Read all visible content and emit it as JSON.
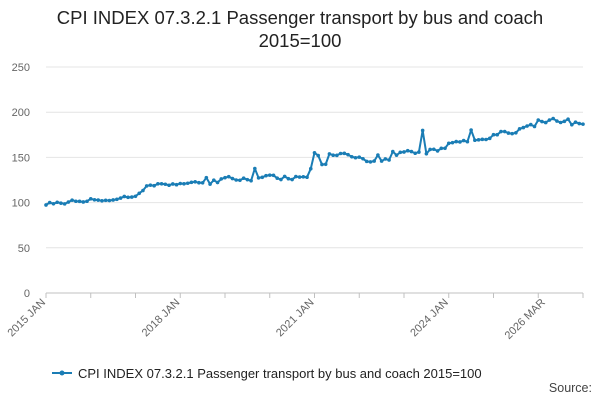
{
  "title_line1": "CPI INDEX 07.3.2.1 Passenger transport by bus and coach",
  "title_line2": "2015=100",
  "source_label": "Source:",
  "colors": {
    "series": "#1a7db5",
    "grid": "#e4e4e4",
    "axis": "#c0c0c0",
    "tick_text": "#666666"
  },
  "chart_data": {
    "type": "line",
    "title": "CPI INDEX 07.3.2.1 Passenger transport by bus and coach 2015=100",
    "xlabel": "",
    "ylabel": "",
    "ylim": [
      0,
      250
    ],
    "yticks": [
      0,
      50,
      100,
      150,
      200,
      250
    ],
    "xlim": [
      "2015 JAN",
      "2026 MAR"
    ],
    "xtick_labels": [
      "2015 JAN",
      "2018 JAN",
      "2021 JAN",
      "2024 JAN",
      "2026 MAR"
    ],
    "grid": true,
    "legend_position": "bottom",
    "series": [
      {
        "name": "CPI INDEX 07.3.2.1 Passenger transport by bus and coach 2015=100",
        "start": "2015 JAN",
        "frequency": "monthly",
        "values": [
          97.4,
          100.0,
          98.7,
          100.4,
          99.4,
          98.6,
          100.6,
          102.7,
          101.5,
          101.4,
          100.7,
          101.5,
          104.2,
          103.1,
          102.8,
          102.0,
          102.5,
          102.3,
          102.9,
          103.6,
          105.0,
          106.8,
          105.8,
          106.1,
          107.0,
          110.3,
          113.4,
          118.5,
          119.3,
          118.7,
          120.8,
          120.8,
          120.3,
          119.2,
          120.6,
          119.8,
          121.1,
          120.8,
          121.4,
          122.4,
          123.0,
          122.0,
          121.9,
          127.6,
          120.5,
          124.8,
          122.2,
          126.2,
          127.6,
          128.7,
          126.6,
          125.0,
          124.7,
          127.0,
          125.4,
          124.2,
          137.7,
          127.3,
          128.0,
          129.8,
          130.4,
          130.2,
          127.0,
          125.5,
          129.0,
          126.4,
          125.5,
          128.8,
          128.2,
          128.5,
          128.1,
          137.5,
          155.1,
          152.0,
          142.2,
          142.4,
          153.9,
          152.4,
          152.3,
          154.3,
          154.5,
          153.0,
          150.7,
          149.6,
          150.3,
          148.5,
          145.6,
          145.0,
          145.9,
          152.6,
          145.9,
          148.3,
          147.1,
          156.4,
          152.5,
          155.6,
          156.0,
          157.4,
          156.4,
          154.6,
          155.9,
          179.8,
          154.0,
          158.8,
          159.0,
          157.2,
          160.0,
          160.1,
          165.6,
          166.3,
          167.5,
          167.1,
          168.6,
          167.3,
          180.3,
          169.0,
          169.4,
          170.0,
          169.8,
          171.1,
          175.1,
          175.1,
          178.6,
          178.6,
          176.9,
          176.3,
          177.2,
          181.6,
          183.0,
          184.7,
          186.3,
          184.2,
          191.3,
          189.6,
          188.5,
          191.3,
          193.0,
          190.2,
          188.6,
          189.9,
          192.3,
          186.1,
          189.0,
          187.4,
          186.8
        ]
      }
    ]
  }
}
